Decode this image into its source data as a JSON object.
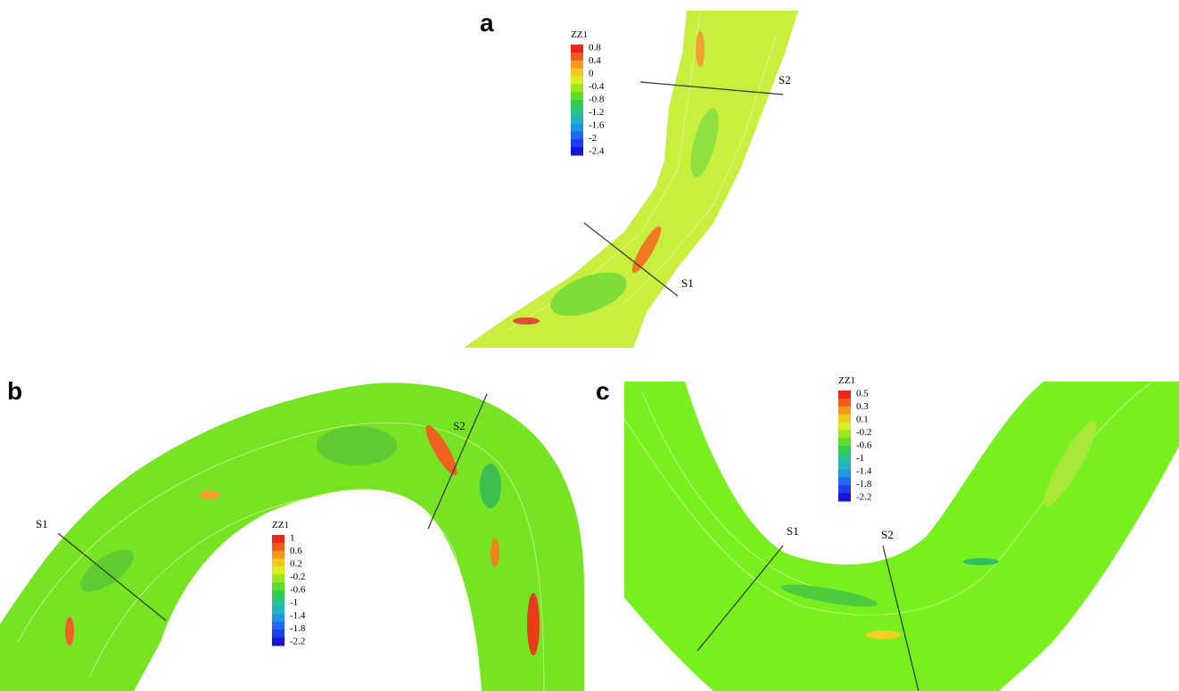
{
  "panels": [
    {
      "label": "a",
      "legend": {
        "title": "ZZ1",
        "labels": [
          "0.8",
          "0.4",
          "0",
          "-0.4",
          "-0.8",
          "-1.2",
          "-1.6",
          "-2",
          "-2.4"
        ]
      },
      "sections": [
        "S1",
        "S2"
      ]
    },
    {
      "label": "b",
      "legend": {
        "title": "ZZ1",
        "labels": [
          "1",
          "0.6",
          "0.2",
          "-0.2",
          "-0.6",
          "-1",
          "-1.4",
          "-1.8",
          "-2.2"
        ]
      },
      "sections": [
        "S1",
        "S2"
      ]
    },
    {
      "label": "c",
      "legend": {
        "title": "ZZ1",
        "labels": [
          "0.5",
          "0.3",
          "0.1",
          "-0.2",
          "-0.6",
          "-1",
          "-1.4",
          "-1.8",
          "-2.2"
        ]
      },
      "sections": [
        "S1",
        "S2"
      ]
    }
  ]
}
